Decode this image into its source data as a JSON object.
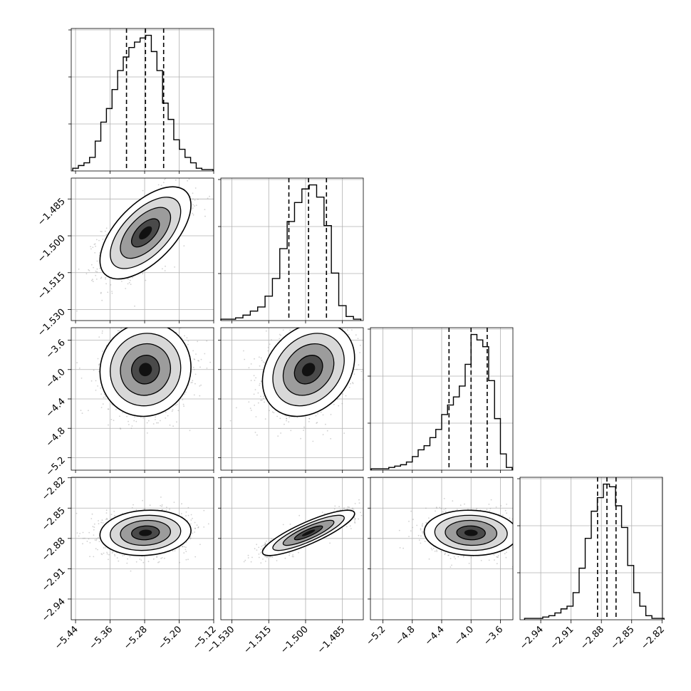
{
  "chart_data": {
    "type": "corner",
    "parameters": [
      {
        "index": 0,
        "range": [
          -5.45,
          -5.12
        ],
        "ticks": [
          -5.44,
          -5.36,
          -5.28,
          -5.2,
          -5.12
        ],
        "tick_labels": [
          "−5.44",
          "−5.36",
          "−5.28",
          "−5.20",
          "−5.12"
        ],
        "quantiles": [
          -5.322,
          -5.278,
          -5.236
        ],
        "hist_centers": [
          -5.44,
          -5.427,
          -5.414,
          -5.401,
          -5.388,
          -5.375,
          -5.362,
          -5.349,
          -5.336,
          -5.323,
          -5.31,
          -5.297,
          -5.284,
          -5.271,
          -5.258,
          -5.245,
          -5.232,
          -5.219,
          -5.206,
          -5.193,
          -5.18,
          -5.167,
          -5.154,
          -5.141,
          -5.128
        ],
        "hist_counts": [
          2,
          4,
          6,
          10,
          22,
          36,
          46,
          60,
          74,
          84,
          91,
          95,
          98,
          100,
          88,
          74,
          50,
          38,
          23,
          16,
          10,
          6,
          2,
          1,
          1
        ]
      },
      {
        "index": 1,
        "range": [
          -1.5345,
          -1.4765
        ],
        "ticks": [
          -1.53,
          -1.515,
          -1.5,
          -1.485
        ],
        "tick_labels": [
          "−1.530",
          "−1.515",
          "−1.500",
          "−1.485"
        ],
        "quantiles": [
          -1.5068,
          -1.4988,
          -1.4915
        ],
        "hist_centers": [
          -1.533,
          -1.53,
          -1.527,
          -1.524,
          -1.521,
          -1.518,
          -1.515,
          -1.512,
          -1.509,
          -1.506,
          -1.503,
          -1.5,
          -1.497,
          -1.494,
          -1.491,
          -1.488,
          -1.485,
          -1.482,
          -1.479
        ],
        "hist_counts": [
          1,
          1,
          2,
          4,
          7,
          10,
          18,
          31,
          53,
          73,
          87,
          97,
          100,
          91,
          70,
          35,
          11,
          3,
          1
        ]
      },
      {
        "index": 2,
        "range": [
          -5.37,
          -3.43
        ],
        "ticks": [
          -5.2,
          -4.8,
          -4.4,
          -4.0,
          -3.6
        ],
        "tick_labels": [
          "−5.2",
          "−4.8",
          "−4.4",
          "−4.0",
          "−3.6"
        ],
        "quantiles": [
          -4.3,
          -4.0,
          -3.78
        ],
        "hist_centers": [
          -5.32,
          -5.24,
          -5.16,
          -5.08,
          -5.0,
          -4.92,
          -4.84,
          -4.76,
          -4.68,
          -4.6,
          -4.52,
          -4.44,
          -4.36,
          -4.28,
          -4.2,
          -4.12,
          -4.04,
          -3.96,
          -3.88,
          -3.8,
          -3.72,
          -3.64,
          -3.56,
          -3.48
        ],
        "hist_counts": [
          1,
          1,
          1,
          2,
          3,
          4,
          6,
          10,
          15,
          18,
          24,
          30,
          41,
          48,
          54,
          62,
          78,
          100,
          96,
          91,
          66,
          38,
          12,
          2
        ]
      },
      {
        "index": 3,
        "range": [
          -2.9605,
          -2.8195
        ],
        "ticks": [
          -2.94,
          -2.91,
          -2.88,
          -2.85,
          -2.82
        ],
        "tick_labels": [
          "−2.94",
          "−2.91",
          "−2.88",
          "−2.85",
          "−2.82"
        ],
        "quantiles": [
          -2.8838,
          -2.8745,
          -2.8655
        ],
        "hist_centers": [
          -2.953,
          -2.947,
          -2.941,
          -2.935,
          -2.929,
          -2.923,
          -2.917,
          -2.911,
          -2.905,
          -2.899,
          -2.893,
          -2.887,
          -2.881,
          -2.875,
          -2.869,
          -2.863,
          -2.857,
          -2.851,
          -2.845,
          -2.839,
          -2.833,
          -2.827,
          -2.821
        ],
        "hist_counts": [
          1,
          1,
          1,
          2,
          3,
          5,
          8,
          10,
          20,
          38,
          60,
          80,
          90,
          100,
          98,
          84,
          68,
          40,
          20,
          10,
          3,
          1,
          1
        ]
      }
    ],
    "correlations": [
      [
        0,
        1,
        0.6
      ],
      [
        0,
        2,
        0.05
      ],
      [
        0,
        3,
        0.1
      ],
      [
        1,
        2,
        0.25
      ],
      [
        1,
        3,
        0.85
      ],
      [
        2,
        3,
        -0.05
      ]
    ],
    "grid": true,
    "xlabel": "",
    "ylabel": ""
  }
}
